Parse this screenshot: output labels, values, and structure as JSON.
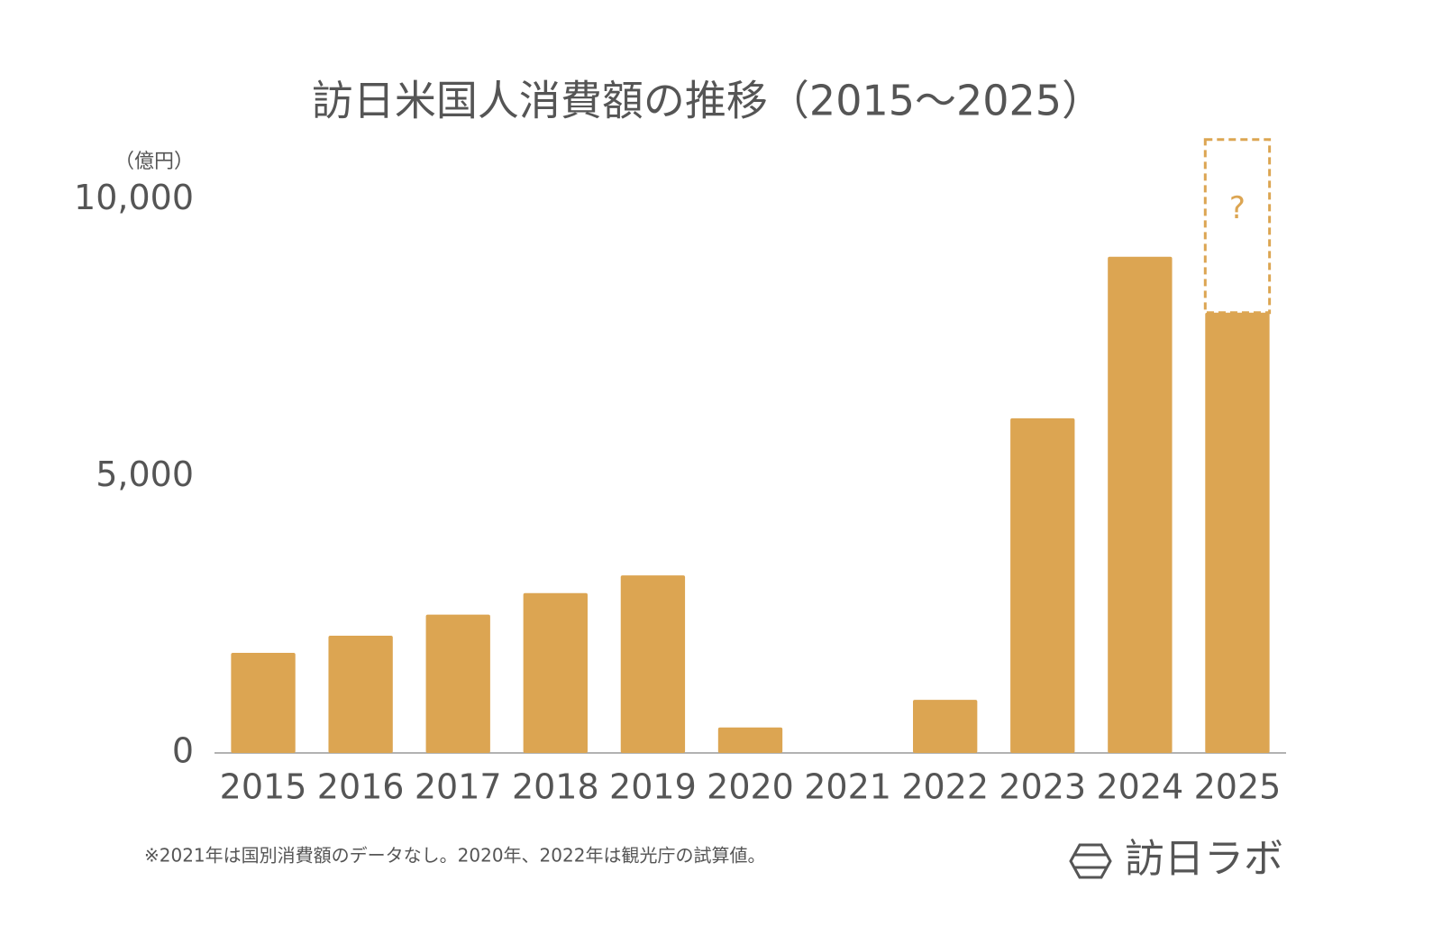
{
  "chart_data": {
    "type": "bar",
    "title": "訪日米国人消費額の推移（2015〜2025）",
    "y_axis_label": "（億円）",
    "categories": [
      "2015",
      "2016",
      "2017",
      "2018",
      "2019",
      "2020",
      "2021",
      "2022",
      "2023",
      "2024",
      "2025"
    ],
    "values": [
      1810,
      2120,
      2500,
      2890,
      3210,
      460,
      null,
      960,
      6050,
      8970,
      7960
    ],
    "color": "#dca552",
    "projection": {
      "label": "?",
      "values": [
        null,
        null,
        null,
        null,
        null,
        null,
        null,
        null,
        null,
        null,
        3130
      ]
    },
    "ylim": [
      0,
      11200
    ],
    "yticks": [
      0,
      {
        "value": 5000,
        "label": "5,000"
      },
      {
        "value": 10000,
        "label": "10,000"
      }
    ],
    "grid": false,
    "footnote": "※2021年は国別消費額のデータなし。2020年、2022年は観光庁の試算値。",
    "brand": "訪日ラボ"
  }
}
